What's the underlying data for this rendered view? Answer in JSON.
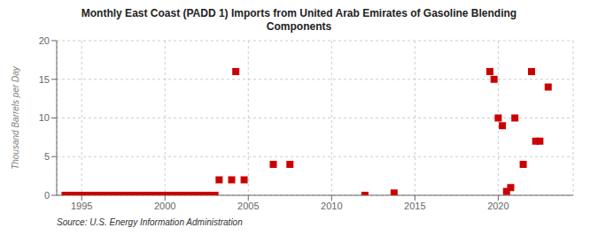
{
  "chart_data": {
    "type": "scatter",
    "title": "Monthly East Coast (PADD 1) Imports from United Arab Emirates of Gasoline Blending\nComponents",
    "ylabel": "Thousand Barrels per Day",
    "annotations": [
      "Source: U.S. Energy Information Administration"
    ],
    "xlim": [
      1993.5,
      2024.5
    ],
    "ylim": [
      0,
      20
    ],
    "xticks": [
      1995,
      2000,
      2005,
      2010,
      2015,
      2020
    ],
    "yticks": [
      0,
      5,
      10,
      15,
      20
    ],
    "grid": true,
    "color": "#cc0000",
    "marker": "square",
    "x": [
      1994.0,
      1994.25,
      1994.5,
      1994.75,
      1995.0,
      1995.25,
      1995.5,
      1995.75,
      1996.0,
      1996.25,
      1996.5,
      1996.75,
      1997.0,
      1997.25,
      1997.5,
      1997.75,
      1998.0,
      1998.25,
      1998.5,
      1998.75,
      1999.0,
      1999.25,
      1999.5,
      1999.75,
      2000.0,
      2000.25,
      2000.5,
      2000.75,
      2001.0,
      2001.25,
      2001.5,
      2001.75,
      2002.0,
      2002.25,
      2002.5,
      2002.75,
      2003.0,
      2003.25,
      2004.0,
      2004.25,
      2004.75,
      2006.5,
      2007.5,
      2012.0,
      2013.75,
      2019.5,
      2019.75,
      2020.0,
      2020.25,
      2020.5,
      2020.75,
      2021.0,
      2021.5,
      2022.0,
      2022.25,
      2022.5,
      2023.0
    ],
    "values": [
      0.0,
      0.0,
      0.0,
      0.0,
      0.0,
      0.0,
      0.0,
      0.0,
      0.0,
      0.0,
      0.0,
      0.0,
      0.0,
      0.0,
      0.0,
      0.0,
      0.0,
      0.0,
      0.0,
      0.0,
      0.0,
      0.0,
      0.0,
      0.0,
      0.0,
      0.0,
      0.0,
      0.0,
      0.0,
      0.0,
      0.0,
      0.0,
      0.0,
      0.0,
      0.0,
      0.0,
      0.0,
      2.0,
      2.0,
      16.0,
      2.0,
      4.0,
      4.0,
      0.0,
      0.3,
      16.0,
      15.0,
      10.0,
      9.0,
      0.5,
      1.0,
      10.0,
      4.0,
      16.0,
      7.0,
      7.0,
      14.0
    ]
  }
}
